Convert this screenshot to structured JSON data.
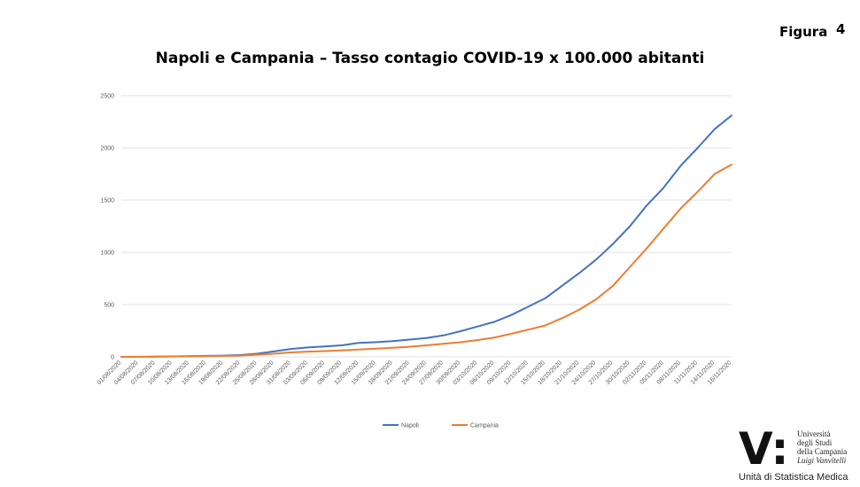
{
  "figure": {
    "label": "Figura",
    "number": "4"
  },
  "chart_data": {
    "type": "line",
    "title": "Napoli e Campania – Tasso contagio COVID-19 x 100.000 abitanti",
    "xlabel": "",
    "ylabel": "",
    "ylim": [
      0,
      2500
    ],
    "yticks": [
      0,
      500,
      1000,
      1500,
      2000,
      2500
    ],
    "grid": "horizontal",
    "legend_position": "bottom",
    "colors": {
      "Napoli": "#4472C4",
      "Campania": "#ED7D31"
    },
    "x": [
      "01/08/2020",
      "04/08/2020",
      "07/08/2020",
      "10/08/2020",
      "13/08/2020",
      "16/08/2020",
      "19/08/2020",
      "22/08/2020",
      "25/08/2020",
      "28/08/2020",
      "31/08/2020",
      "03/09/2020",
      "06/09/2020",
      "09/09/2020",
      "12/09/2020",
      "15/09/2020",
      "18/09/2020",
      "21/09/2020",
      "24/09/2020",
      "27/09/2020",
      "30/09/2020",
      "03/10/2020",
      "06/10/2020",
      "09/10/2020",
      "12/10/2020",
      "15/10/2020",
      "18/10/2020",
      "21/10/2020",
      "24/10/2020",
      "27/10/2020",
      "30/10/2020",
      "02/11/2020",
      "05/11/2020",
      "08/11/2020",
      "11/11/2020",
      "14/11/2020",
      "16/11/2020"
    ],
    "series": [
      {
        "name": "Napoli",
        "values": [
          0,
          0,
          2,
          4,
          6,
          9,
          12,
          17,
          30,
          52,
          75,
          90,
          100,
          110,
          133,
          140,
          150,
          165,
          180,
          205,
          245,
          290,
          335,
          400,
          480,
          560,
          680,
          800,
          930,
          1080,
          1250,
          1450,
          1620,
          1830,
          2000,
          2180,
          2310
        ]
      },
      {
        "name": "Campania",
        "values": [
          0,
          0,
          1,
          3,
          5,
          7,
          9,
          12,
          20,
          30,
          42,
          50,
          55,
          62,
          70,
          78,
          87,
          97,
          110,
          125,
          140,
          160,
          185,
          220,
          260,
          300,
          370,
          450,
          550,
          680,
          860,
          1040,
          1230,
          1420,
          1580,
          1750,
          1840
        ]
      }
    ]
  },
  "logo": {
    "mark": "V:",
    "lines": [
      "Università",
      "degli Studi",
      "della Campania",
      "Luigi Vanvitelli"
    ],
    "caption": "Unità di Statistica Medica"
  }
}
